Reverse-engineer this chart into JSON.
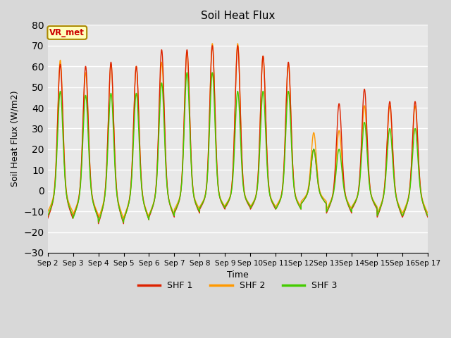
{
  "title": "Soil Heat Flux",
  "ylabel": "Soil Heat Flux (W/m2)",
  "xlabel": "Time",
  "ylim": [
    -30,
    80
  ],
  "yticks": [
    -30,
    -20,
    -10,
    0,
    10,
    20,
    30,
    40,
    50,
    60,
    70,
    80
  ],
  "fig_bg_color": "#d8d8d8",
  "plot_bg_color": "#e8e8e8",
  "grid_color": "white",
  "colors": {
    "SHF 1": "#dd2200",
    "SHF 2": "#ff9900",
    "SHF 3": "#44cc00"
  },
  "annotation_text": "VR_met",
  "annotation_box_color": "#ffffbb",
  "annotation_border_color": "#aa8800",
  "annotation_text_color": "#cc0000",
  "start_day": 2,
  "end_day": 17,
  "points_per_day": 144,
  "peak_time": 0.5,
  "peak_spread": 0.1,
  "trough_spread": 0.35,
  "day_peaks_shf1": [
    61,
    60,
    62,
    60,
    68,
    68,
    70,
    70,
    65,
    62,
    20,
    42,
    49,
    43,
    43
  ],
  "day_peaks_shf2": [
    63,
    57,
    61,
    60,
    62,
    67,
    71,
    71,
    65,
    61,
    28,
    29,
    41,
    41,
    41
  ],
  "day_peaks_shf3": [
    48,
    46,
    47,
    47,
    52,
    57,
    57,
    48,
    48,
    48,
    20,
    20,
    33,
    30,
    30
  ],
  "day_troughs_shf1": [
    -21,
    -20,
    -25,
    -22,
    -20,
    -17,
    -14,
    -13,
    -14,
    -14,
    -10,
    -17,
    -14,
    -20,
    -20
  ],
  "day_troughs_shf2": [
    -16,
    -18,
    -21,
    -20,
    -18,
    -14,
    -12,
    -11,
    -12,
    -12,
    -8,
    -14,
    -12,
    -17,
    -17
  ],
  "day_troughs_shf3": [
    -19,
    -21,
    -24,
    -22,
    -19,
    -16,
    -13,
    -12,
    -13,
    -14,
    -10,
    -16,
    -13,
    -19,
    -19
  ],
  "legend_entries": [
    "SHF 1",
    "SHF 2",
    "SHF 3"
  ]
}
